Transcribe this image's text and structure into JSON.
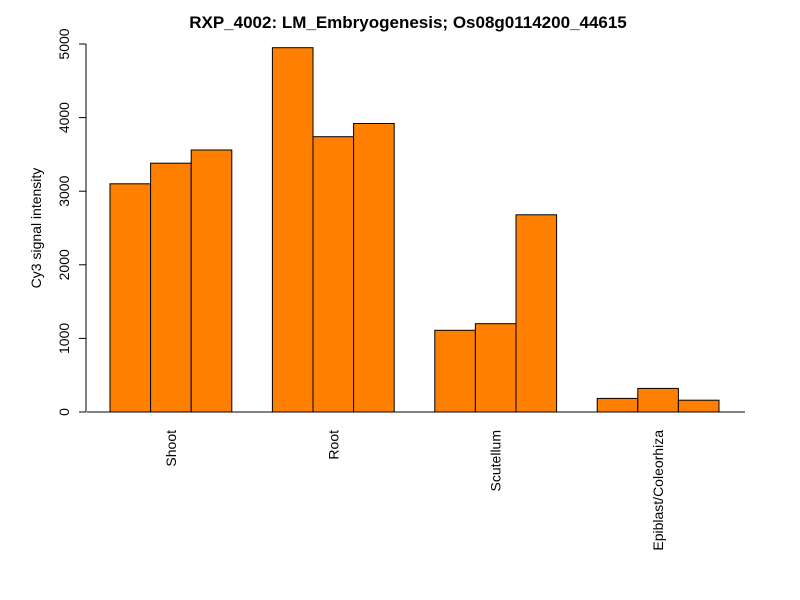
{
  "chart_data": {
    "type": "bar",
    "title": "RXP_4002: LM_Embryogenesis; Os08g0114200_44615",
    "xlabel": "",
    "ylabel": "Cy3 signal intensity",
    "ylim": [
      0,
      5000
    ],
    "yticks": [
      0,
      1000,
      2000,
      3000,
      4000,
      5000
    ],
    "categories": [
      "Shoot",
      "Root",
      "Scutellum",
      "Epiblast/Coleorhiza"
    ],
    "groups": [
      {
        "category": "Shoot",
        "values": [
          3100,
          3380,
          3560
        ]
      },
      {
        "category": "Root",
        "values": [
          4950,
          3740,
          3920
        ]
      },
      {
        "category": "Scutellum",
        "values": [
          1110,
          1200,
          2680
        ]
      },
      {
        "category": "Epiblast/Coleorhiza",
        "values": [
          185,
          320,
          160
        ]
      }
    ],
    "bar_color": "#FF7F00",
    "grid": false,
    "legend": "none"
  }
}
